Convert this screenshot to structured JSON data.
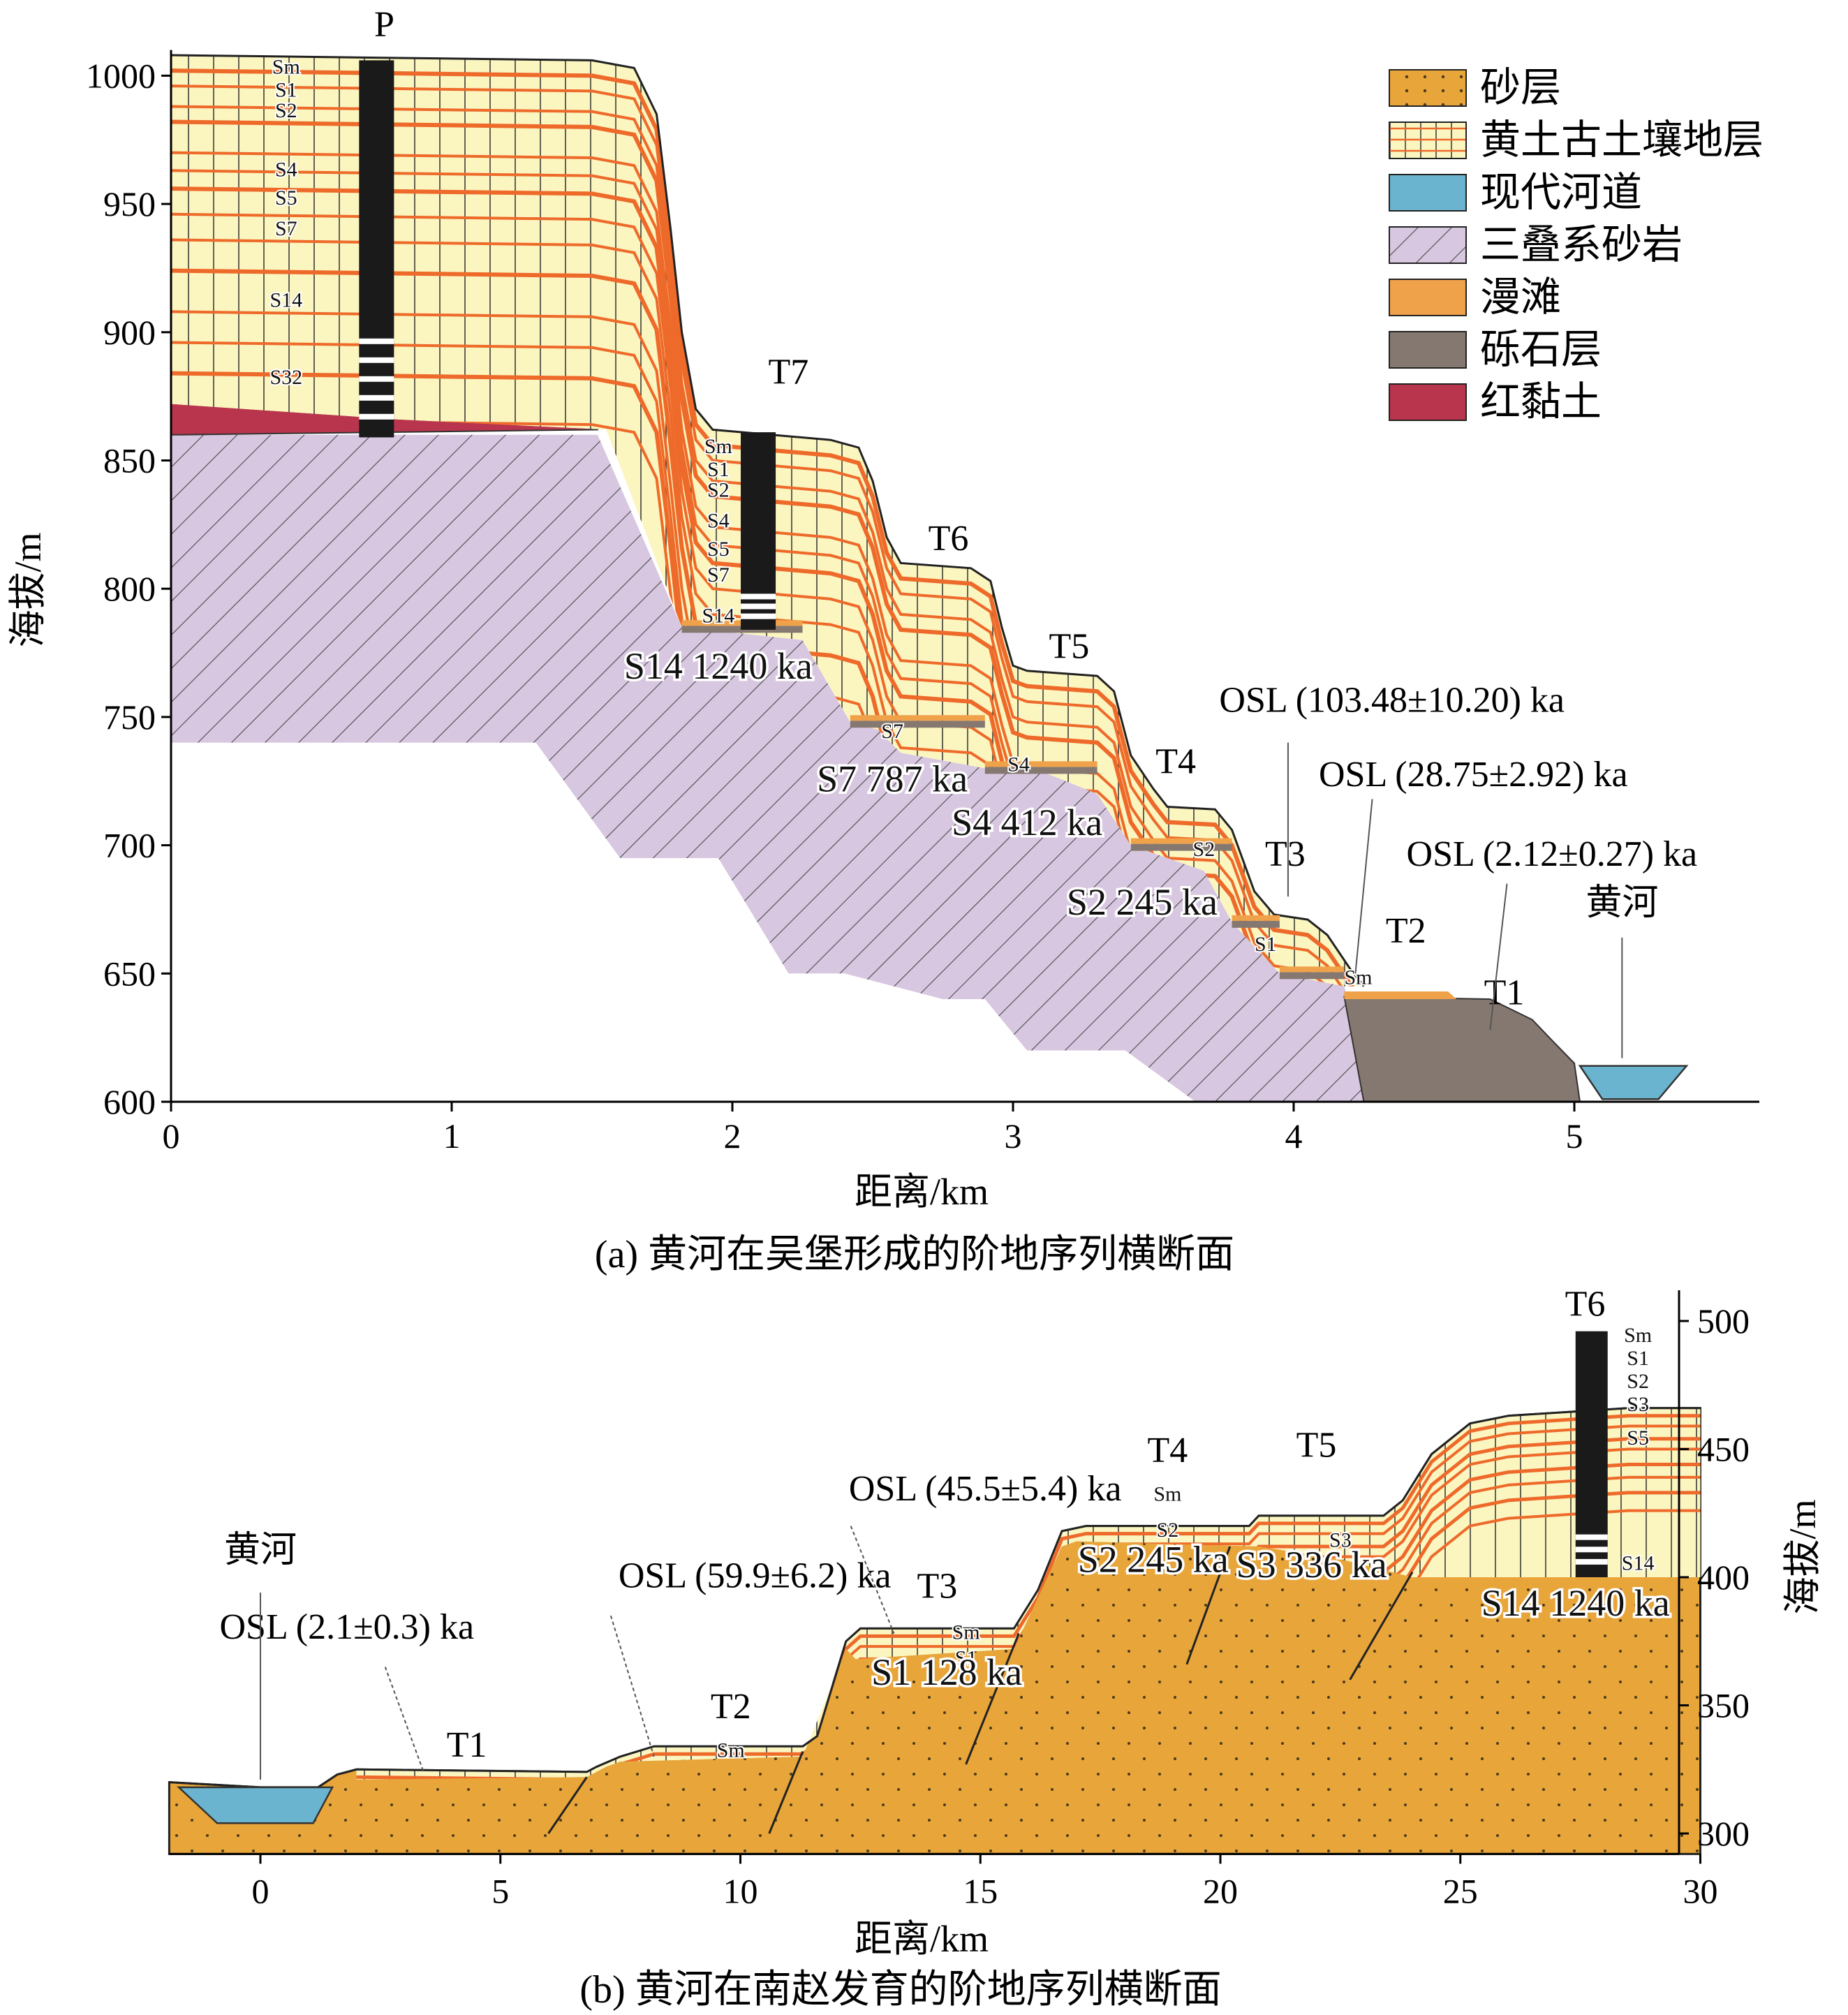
{
  "colors": {
    "sand": "#E8A53A",
    "loess": "#FBF5C0",
    "paleosol_line": "#EE6A2A",
    "river": "#6BB4CF",
    "sandstone": "#D8C7E0",
    "floodplain": "#F0A24A",
    "gravel": "#857870",
    "red_clay": "#B9354D",
    "column_dark": "#1A1A1A"
  },
  "legend": [
    {
      "label": "砂层",
      "swatch": "sand"
    },
    {
      "label": "黄土古土壤地层",
      "swatch": "loess"
    },
    {
      "label": "现代河道",
      "swatch": "river"
    },
    {
      "label": "三叠系砂岩",
      "swatch": "sandstone"
    },
    {
      "label": "漫滩",
      "swatch": "floodplain"
    },
    {
      "label": "砾石层",
      "swatch": "gravel"
    },
    {
      "label": "红黏土",
      "swatch": "red_clay"
    }
  ],
  "panel_a": {
    "caption": "(a) 黄河在吴堡形成的阶地序列横断面",
    "xlabel": "距离/km",
    "ylabel": "海拔/m",
    "x_ticks": [
      "0",
      "1",
      "2",
      "3",
      "4",
      "5"
    ],
    "y_ticks": [
      "1000",
      "950",
      "900",
      "850",
      "800",
      "750",
      "700",
      "650",
      "600"
    ],
    "xlim": [
      0,
      5.65
    ],
    "ylim": [
      600,
      1010
    ],
    "profile_label": "P",
    "profile_soils": [
      "Sm",
      "S1",
      "S2",
      "S4",
      "S5",
      "S7",
      "S14",
      "S32"
    ],
    "t7_soils": [
      "Sm",
      "S1",
      "S2",
      "S4",
      "S5",
      "S7",
      "S14"
    ],
    "terraces": [
      "T7",
      "T6",
      "T5",
      "T4",
      "T3",
      "T2",
      "T1"
    ],
    "base_soils": [
      "S7",
      "S4",
      "S2",
      "S1",
      "Sm"
    ],
    "ages": [
      "S14 1240 ka",
      "S7 787 ka",
      "S4 412 ka",
      "S2 245 ka"
    ],
    "osl": [
      "OSL (103.48±10.20) ka",
      "OSL (28.75±2.92) ka",
      "OSL (2.12±0.27) ka"
    ],
    "river": "黄河"
  },
  "panel_b": {
    "caption": "(b) 黄河在南赵发育的阶地序列横断面",
    "xlabel": "距离/km",
    "ylabel": "海拔/m",
    "x_ticks": [
      "0",
      "5",
      "10",
      "15",
      "20",
      "25",
      "30"
    ],
    "y_ticks": [
      "500",
      "450",
      "400",
      "350",
      "300"
    ],
    "xlim": [
      -1.9,
      30
    ],
    "ylim": [
      292,
      505
    ],
    "terraces": [
      "T6",
      "T5",
      "T4",
      "T3",
      "T2",
      "T1"
    ],
    "t6_soils": [
      "Sm",
      "S1",
      "S2",
      "S3",
      "S5",
      "S14"
    ],
    "base_soils": [
      "Sm",
      "Sm",
      "S1",
      "Sm",
      "S2",
      "S3"
    ],
    "ages": [
      "S1 128 ka",
      "S2 245 ka",
      "S3 336 ka",
      "S14 1240 ka"
    ],
    "osl": [
      "OSL (45.5±5.4) ka",
      "OSL (59.9±6.2) ka",
      "OSL (2.1±0.3) ka"
    ],
    "river": "黄河"
  }
}
